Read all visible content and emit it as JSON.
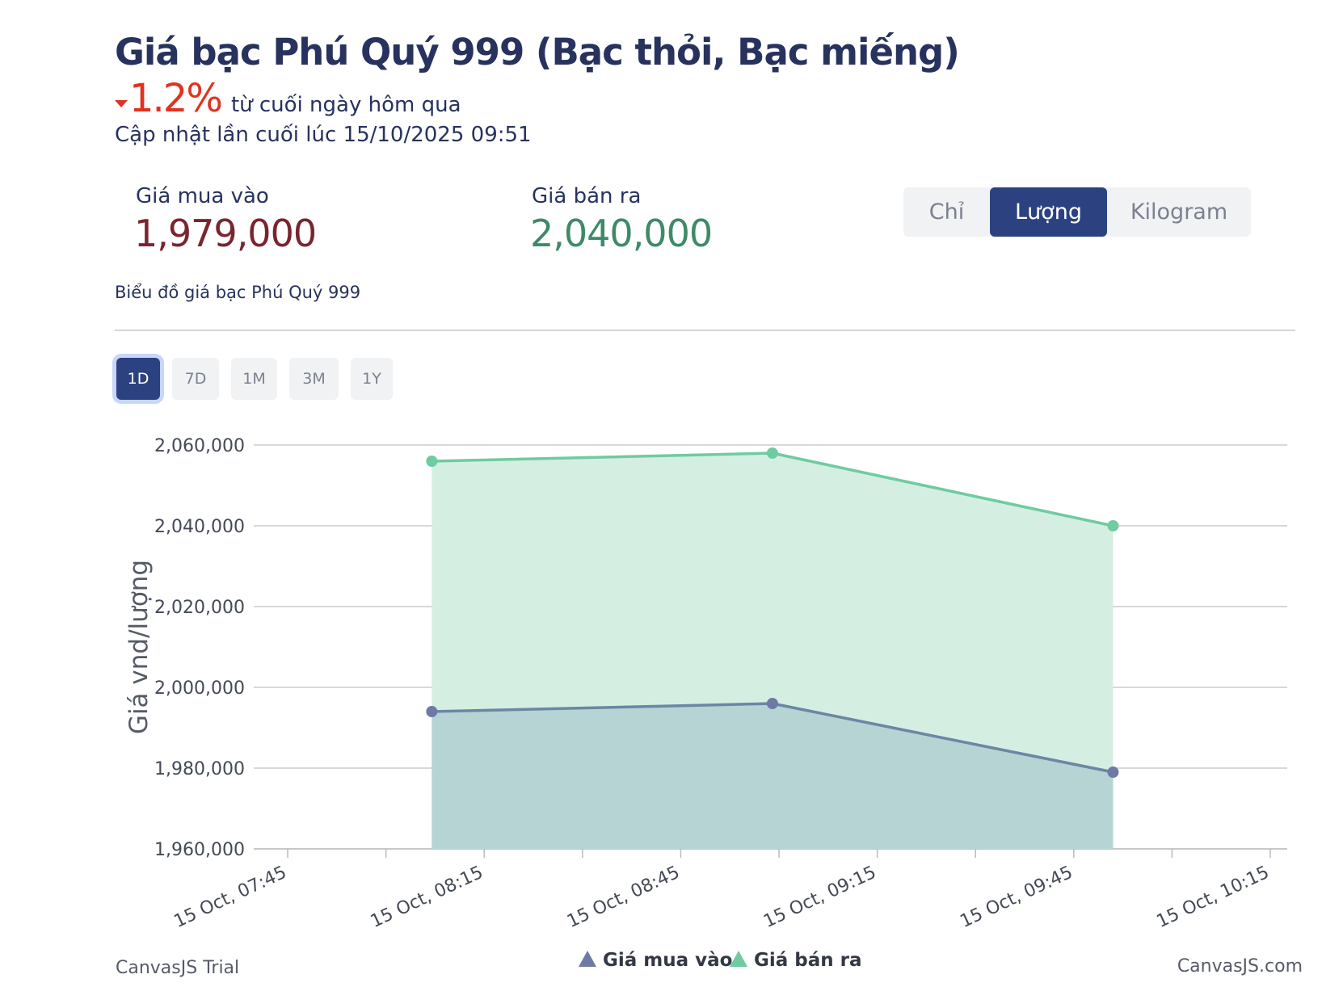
{
  "header": {
    "title": "Giá bạc Phú Quý 999 (Bạc thỏi, Bạc miếng)",
    "change_value": "1.2%",
    "change_label": "từ cuối ngày hôm qua",
    "updated": "Cập nhật lần cuối lúc 15/10/2025 09:51"
  },
  "prices": {
    "buy_label": "Giá mua vào",
    "buy_value": "1,979,000",
    "sell_label": "Giá bán ra",
    "sell_value": "2,040,000"
  },
  "unit_tabs": [
    {
      "label": "Chỉ",
      "active": false
    },
    {
      "label": "Lượng",
      "active": true
    },
    {
      "label": "Kilogram",
      "active": false
    }
  ],
  "chart_heading": "Biểu đồ giá bạc Phú Quý 999",
  "range_tabs": [
    {
      "label": "1D",
      "active": true
    },
    {
      "label": "7D",
      "active": false
    },
    {
      "label": "1M",
      "active": false
    },
    {
      "label": "3M",
      "active": false
    },
    {
      "label": "1Y",
      "active": false
    }
  ],
  "credits": {
    "left": "CanvasJS Trial",
    "right": "CanvasJS.com"
  },
  "chart_data": {
    "type": "area",
    "ylabel": "Giá vnd/lượng",
    "ylim": [
      1960000,
      2060000
    ],
    "y_ticks": [
      "1,960,000",
      "1,980,000",
      "2,000,000",
      "2,020,000",
      "2,040,000",
      "2,060,000"
    ],
    "x_ticks": [
      "15 Oct, 07:45",
      "15 Oct, 08:15",
      "15 Oct, 08:45",
      "15 Oct, 09:15",
      "15 Oct, 09:45",
      "15 Oct, 10:15"
    ],
    "x": [
      "08:07",
      "08:59",
      "09:51"
    ],
    "grid": true,
    "legend": "bottom-center",
    "series": [
      {
        "name": "Giá mua vào",
        "values": [
          1994000,
          1996000,
          1979000
        ],
        "line_color": "#6c86a4",
        "fill_color": "#b5d4d3",
        "marker_color": "#6e79a8"
      },
      {
        "name": "Giá bán ra",
        "values": [
          2056000,
          2058000,
          2040000
        ],
        "line_color": "#6fcba0",
        "fill_color": "#d4efe1",
        "marker_color": "#6fcba0"
      }
    ]
  }
}
